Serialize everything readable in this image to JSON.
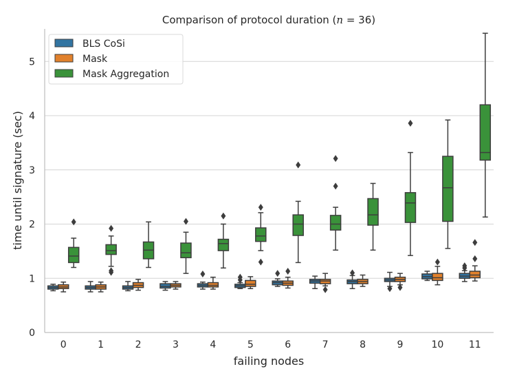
{
  "chart_data": {
    "type": "box",
    "title_prefix": "Comparison of protocol duration (",
    "title_var": "n",
    "title_eq": " = 36",
    "title_suffix": ")",
    "xlabel": "failing nodes",
    "ylabel": "time until signature (sec)",
    "categories": [
      "0",
      "1",
      "2",
      "3",
      "4",
      "5",
      "6",
      "7",
      "8",
      "9",
      "10",
      "11"
    ],
    "yticks": [
      0,
      1,
      2,
      3,
      4,
      5
    ],
    "ylim": [
      0,
      5.6
    ],
    "grid": "horizontal",
    "legend_position": "top-left",
    "series": [
      {
        "name": "BLS CoSi",
        "color": "#3274a1",
        "boxes": [
          {
            "whislo": 0.77,
            "q1": 0.8,
            "med": 0.83,
            "q3": 0.86,
            "whishi": 0.89,
            "fliers": []
          },
          {
            "whislo": 0.75,
            "q1": 0.8,
            "med": 0.83,
            "q3": 0.86,
            "whishi": 0.94,
            "fliers": []
          },
          {
            "whislo": 0.77,
            "q1": 0.8,
            "med": 0.83,
            "q3": 0.86,
            "whishi": 0.94,
            "fliers": []
          },
          {
            "whislo": 0.78,
            "q1": 0.82,
            "med": 0.85,
            "q3": 0.9,
            "whishi": 0.94,
            "fliers": []
          },
          {
            "whislo": 0.8,
            "q1": 0.84,
            "med": 0.87,
            "q3": 0.9,
            "whishi": 0.93,
            "fliers": [
              1.08
            ]
          },
          {
            "whislo": 0.81,
            "q1": 0.83,
            "med": 0.86,
            "q3": 0.89,
            "whishi": 0.92,
            "fliers": [
              1.02,
              0.97
            ]
          },
          {
            "whislo": 0.85,
            "q1": 0.88,
            "med": 0.92,
            "q3": 0.95,
            "whishi": 0.99,
            "fliers": [
              1.09
            ]
          },
          {
            "whislo": 0.81,
            "q1": 0.91,
            "med": 0.95,
            "q3": 0.98,
            "whishi": 1.04,
            "fliers": []
          },
          {
            "whislo": 0.81,
            "q1": 0.9,
            "med": 0.94,
            "q3": 0.97,
            "whishi": 1.05,
            "fliers": [
              1.1
            ]
          },
          {
            "whislo": 0.85,
            "q1": 0.94,
            "med": 0.97,
            "q3": 1.0,
            "whishi": 1.11,
            "fliers": [
              0.81
            ]
          },
          {
            "whislo": 0.96,
            "q1": 0.99,
            "med": 1.03,
            "q3": 1.08,
            "whishi": 1.13,
            "fliers": []
          },
          {
            "whislo": 0.94,
            "q1": 1.0,
            "med": 1.04,
            "q3": 1.09,
            "whishi": 1.14,
            "fliers": [
              1.23,
              1.19
            ]
          }
        ]
      },
      {
        "name": "Mask",
        "color": "#e1812c",
        "boxes": [
          {
            "whislo": 0.75,
            "q1": 0.81,
            "med": 0.84,
            "q3": 0.88,
            "whishi": 0.93,
            "fliers": []
          },
          {
            "whislo": 0.75,
            "q1": 0.8,
            "med": 0.84,
            "q3": 0.88,
            "whishi": 0.93,
            "fliers": []
          },
          {
            "whislo": 0.78,
            "q1": 0.83,
            "med": 0.87,
            "q3": 0.92,
            "whishi": 0.98,
            "fliers": []
          },
          {
            "whislo": 0.8,
            "q1": 0.84,
            "med": 0.87,
            "q3": 0.9,
            "whishi": 0.94,
            "fliers": []
          },
          {
            "whislo": 0.8,
            "q1": 0.84,
            "med": 0.87,
            "q3": 0.92,
            "whishi": 1.02,
            "fliers": []
          },
          {
            "whislo": 0.81,
            "q1": 0.85,
            "med": 0.89,
            "q3": 0.96,
            "whishi": 1.03,
            "fliers": []
          },
          {
            "whislo": 0.82,
            "q1": 0.87,
            "med": 0.91,
            "q3": 0.95,
            "whishi": 1.02,
            "fliers": [
              1.13
            ]
          },
          {
            "whislo": 0.86,
            "q1": 0.9,
            "med": 0.95,
            "q3": 0.98,
            "whishi": 1.09,
            "fliers": [
              0.79
            ]
          },
          {
            "whislo": 0.85,
            "q1": 0.9,
            "med": 0.94,
            "q3": 0.98,
            "whishi": 1.06,
            "fliers": []
          },
          {
            "whislo": 0.88,
            "q1": 0.94,
            "med": 0.98,
            "q3": 1.02,
            "whishi": 1.09,
            "fliers": [
              0.83
            ]
          },
          {
            "whislo": 0.88,
            "q1": 0.96,
            "med": 1.01,
            "q3": 1.09,
            "whishi": 1.22,
            "fliers": [
              1.3
            ]
          },
          {
            "whislo": 0.95,
            "q1": 1.01,
            "med": 1.06,
            "q3": 1.13,
            "whishi": 1.23,
            "fliers": [
              1.36,
              1.66
            ]
          }
        ]
      },
      {
        "name": "Mask Aggregation",
        "color": "#3a923a",
        "boxes": [
          {
            "whislo": 1.2,
            "q1": 1.29,
            "med": 1.41,
            "q3": 1.57,
            "whishi": 1.74,
            "fliers": [
              2.04
            ]
          },
          {
            "whislo": 1.22,
            "q1": 1.44,
            "med": 1.51,
            "q3": 1.62,
            "whishi": 1.78,
            "fliers": [
              1.92,
              1.14,
              1.11
            ]
          },
          {
            "whislo": 1.2,
            "q1": 1.36,
            "med": 1.52,
            "q3": 1.67,
            "whishi": 2.04,
            "fliers": []
          },
          {
            "whislo": 1.09,
            "q1": 1.38,
            "med": 1.47,
            "q3": 1.65,
            "whishi": 1.85,
            "fliers": [
              2.05
            ]
          },
          {
            "whislo": 1.19,
            "q1": 1.51,
            "med": 1.64,
            "q3": 1.72,
            "whishi": 2.0,
            "fliers": [
              2.15
            ]
          },
          {
            "whislo": 1.51,
            "q1": 1.68,
            "med": 1.78,
            "q3": 1.93,
            "whishi": 2.21,
            "fliers": [
              2.31,
              1.3
            ]
          },
          {
            "whislo": 1.29,
            "q1": 1.79,
            "med": 2.0,
            "q3": 2.17,
            "whishi": 2.42,
            "fliers": [
              3.09
            ]
          },
          {
            "whislo": 1.52,
            "q1": 1.89,
            "med": 2.0,
            "q3": 2.16,
            "whishi": 2.31,
            "fliers": [
              3.21,
              2.7
            ]
          },
          {
            "whislo": 1.52,
            "q1": 1.98,
            "med": 2.17,
            "q3": 2.47,
            "whishi": 2.75,
            "fliers": []
          },
          {
            "whislo": 1.42,
            "q1": 2.03,
            "med": 2.39,
            "q3": 2.58,
            "whishi": 3.32,
            "fliers": [
              3.86
            ]
          },
          {
            "whislo": 1.55,
            "q1": 2.05,
            "med": 2.67,
            "q3": 3.25,
            "whishi": 3.92,
            "fliers": []
          },
          {
            "whislo": 2.13,
            "q1": 3.18,
            "med": 3.32,
            "q3": 4.2,
            "whishi": 5.52,
            "fliers": []
          }
        ]
      }
    ]
  }
}
